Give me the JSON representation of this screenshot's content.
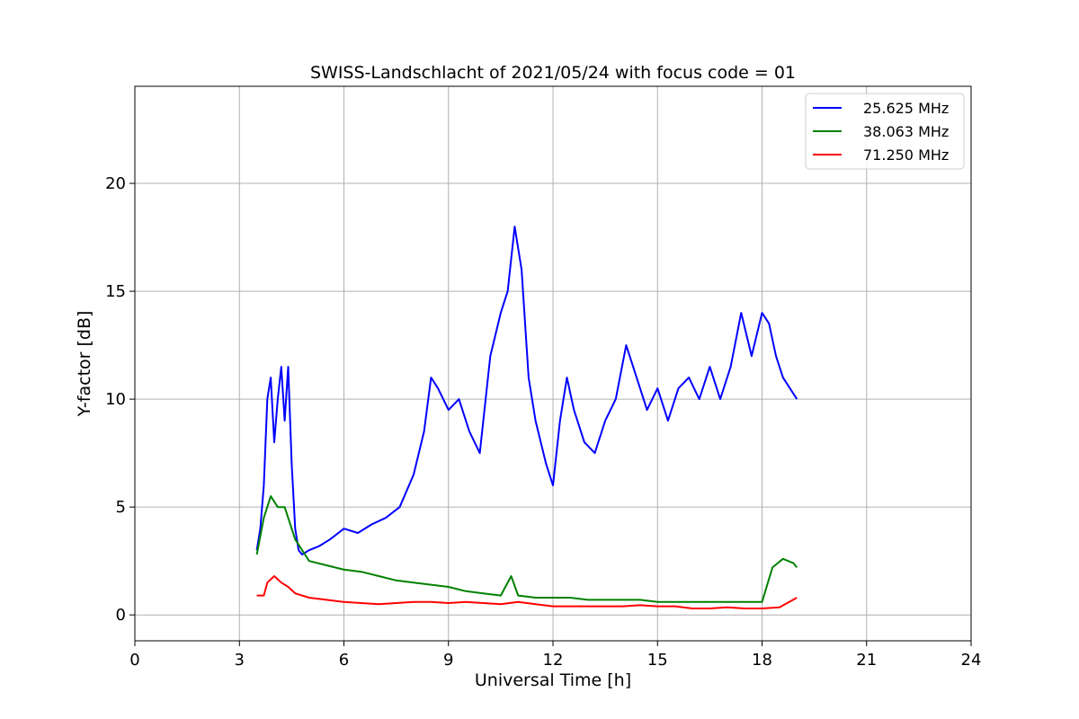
{
  "chart_data": {
    "type": "line",
    "title": "SWISS-Landschlacht of 2021/05/24 with focus code = 01",
    "xlabel": "Universal Time [h]",
    "ylabel": "Y-factor [dB]",
    "xlim": [
      0,
      24
    ],
    "ylim": [
      -1.2,
      24.5
    ],
    "xticks": [
      0,
      3,
      6,
      9,
      12,
      15,
      18,
      21,
      24
    ],
    "xtick_labels": [
      "0",
      "3",
      "6",
      "9",
      "12",
      "15",
      "18",
      "21",
      "24"
    ],
    "yticks": [
      0,
      5,
      10,
      15,
      20
    ],
    "ytick_labels": [
      "0",
      "5",
      "10",
      "15",
      "20"
    ],
    "grid": true,
    "legend_position": "top-right",
    "series": [
      {
        "name": "25.625 MHz",
        "color": "#0000ff",
        "x": [
          3.5,
          3.6,
          3.7,
          3.8,
          3.9,
          4.0,
          4.1,
          4.2,
          4.3,
          4.4,
          4.5,
          4.6,
          4.7,
          4.8,
          5.0,
          5.3,
          5.6,
          6.0,
          6.4,
          6.8,
          7.2,
          7.6,
          8.0,
          8.3,
          8.5,
          8.7,
          9.0,
          9.3,
          9.6,
          9.9,
          10.2,
          10.5,
          10.7,
          10.9,
          11.1,
          11.3,
          11.5,
          11.8,
          12.0,
          12.2,
          12.4,
          12.6,
          12.9,
          13.2,
          13.5,
          13.8,
          14.1,
          14.4,
          14.7,
          15.0,
          15.3,
          15.6,
          15.9,
          16.2,
          16.5,
          16.8,
          17.1,
          17.4,
          17.7,
          18.0,
          18.2,
          18.4,
          18.6,
          18.8,
          19.0
        ],
        "y": [
          3.0,
          4.0,
          6.0,
          10.0,
          11.0,
          8.0,
          10.0,
          11.5,
          9.0,
          11.5,
          7.0,
          4.0,
          3.0,
          2.8,
          3.0,
          3.2,
          3.5,
          4.0,
          3.8,
          4.2,
          4.5,
          5.0,
          6.5,
          8.5,
          11.0,
          10.5,
          9.5,
          10.0,
          8.5,
          7.5,
          12.0,
          14.0,
          15.0,
          18.0,
          16.0,
          11.0,
          9.0,
          7.0,
          6.0,
          9.0,
          11.0,
          9.5,
          8.0,
          7.5,
          9.0,
          10.0,
          12.5,
          11.0,
          9.5,
          10.5,
          9.0,
          10.5,
          11.0,
          10.0,
          11.5,
          10.0,
          11.5,
          14.0,
          12.0,
          14.0,
          13.5,
          12.0,
          11.0,
          10.5,
          10.0
        ]
      },
      {
        "name": "38.063 MHz",
        "color": "#008000",
        "x": [
          3.5,
          3.7,
          3.9,
          4.1,
          4.3,
          4.6,
          5.0,
          5.5,
          6.0,
          6.5,
          7.0,
          7.5,
          8.0,
          8.5,
          9.0,
          9.5,
          10.0,
          10.5,
          10.8,
          11.0,
          11.5,
          12.0,
          12.5,
          13.0,
          13.5,
          14.0,
          14.5,
          15.0,
          15.5,
          16.0,
          16.5,
          17.0,
          17.5,
          18.0,
          18.3,
          18.6,
          18.9,
          19.0
        ],
        "y": [
          2.8,
          4.5,
          5.5,
          5.0,
          5.0,
          3.5,
          2.5,
          2.3,
          2.1,
          2.0,
          1.8,
          1.6,
          1.5,
          1.4,
          1.3,
          1.1,
          1.0,
          0.9,
          1.8,
          0.9,
          0.8,
          0.8,
          0.8,
          0.7,
          0.7,
          0.7,
          0.7,
          0.6,
          0.6,
          0.6,
          0.6,
          0.6,
          0.6,
          0.6,
          2.2,
          2.6,
          2.4,
          2.2
        ]
      },
      {
        "name": "71.250 MHz",
        "color": "#ff0000",
        "x": [
          3.5,
          3.7,
          3.8,
          4.0,
          4.2,
          4.4,
          4.6,
          5.0,
          5.5,
          6.0,
          6.5,
          7.0,
          7.5,
          8.0,
          8.5,
          9.0,
          9.5,
          10.0,
          10.5,
          11.0,
          11.5,
          12.0,
          12.5,
          13.0,
          13.5,
          14.0,
          14.5,
          15.0,
          15.5,
          16.0,
          16.5,
          17.0,
          17.5,
          18.0,
          18.5,
          19.0
        ],
        "y": [
          0.9,
          0.9,
          1.5,
          1.8,
          1.5,
          1.3,
          1.0,
          0.8,
          0.7,
          0.6,
          0.55,
          0.5,
          0.55,
          0.6,
          0.6,
          0.55,
          0.6,
          0.55,
          0.5,
          0.6,
          0.5,
          0.4,
          0.4,
          0.4,
          0.4,
          0.4,
          0.45,
          0.4,
          0.4,
          0.3,
          0.3,
          0.35,
          0.3,
          0.3,
          0.35,
          0.8
        ]
      }
    ]
  }
}
